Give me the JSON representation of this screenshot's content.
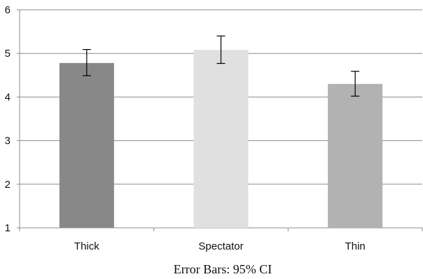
{
  "chart_data": {
    "type": "bar",
    "categories": [
      "Thick",
      "Spectator",
      "Thin"
    ],
    "values": [
      4.78,
      5.08,
      4.3
    ],
    "error_bars": {
      "lower": [
        4.49,
        4.77,
        4.02
      ],
      "upper": [
        5.09,
        5.4,
        4.59
      ]
    },
    "colors": [
      "#888888",
      "#e0e0e0",
      "#b2b2b2"
    ],
    "ylim": [
      1,
      6
    ],
    "yticks": [
      1,
      2,
      3,
      4,
      5,
      6
    ],
    "grid": true,
    "legend": "none",
    "caption": "Error Bars: 95% CI"
  }
}
